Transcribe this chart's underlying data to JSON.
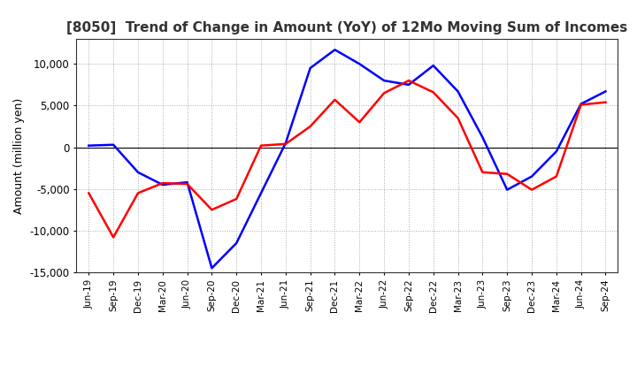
{
  "title": "[8050]  Trend of Change in Amount (YoY) of 12Mo Moving Sum of Incomes",
  "ylabel": "Amount (million yen)",
  "background_color": "#ffffff",
  "plot_bg_color": "#ffffff",
  "grid_color": "#aaaaaa",
  "line_color_ordinary": "#0000ff",
  "line_color_net": "#ff0000",
  "ylim": [
    -15000,
    13000
  ],
  "yticks": [
    -15000,
    -10000,
    -5000,
    0,
    5000,
    10000
  ],
  "x_labels": [
    "Jun-19",
    "Sep-19",
    "Dec-19",
    "Mar-20",
    "Jun-20",
    "Sep-20",
    "Dec-20",
    "Mar-21",
    "Jun-21",
    "Sep-21",
    "Dec-21",
    "Mar-22",
    "Jun-22",
    "Sep-22",
    "Dec-22",
    "Mar-23",
    "Jun-23",
    "Sep-23",
    "Dec-23",
    "Mar-24",
    "Jun-24",
    "Sep-24"
  ],
  "ordinary_income": [
    200,
    300,
    -3000,
    -4500,
    -4200,
    -14500,
    -11500,
    -5500,
    500,
    9500,
    11700,
    10000,
    8000,
    7500,
    9800,
    6700,
    1200,
    -5100,
    -3500,
    -500,
    5200,
    6700
  ],
  "net_income": [
    -5500,
    -10800,
    -5500,
    -4300,
    -4400,
    -7500,
    -6200,
    200,
    400,
    2500,
    5700,
    3000,
    6500,
    8000,
    6600,
    3500,
    -3000,
    -3200,
    -5100,
    -3500,
    5100,
    5400
  ]
}
